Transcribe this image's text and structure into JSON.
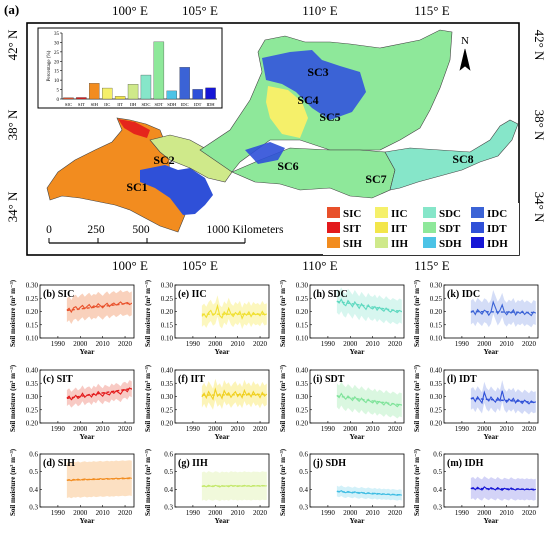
{
  "map": {
    "panel_label": "(a)",
    "lon_labels": [
      "100° E",
      "105° E",
      "110° E",
      "115° E"
    ],
    "lat_labels": [
      "42° N",
      "38° N",
      "34° N"
    ],
    "north_label": "N",
    "scale_labels": [
      "0",
      "250",
      "500",
      "1000 Kilometers"
    ],
    "region_labels": [
      "SC1",
      "SC2",
      "SC3",
      "SC4",
      "SC5",
      "SC6",
      "SC7",
      "SC8"
    ],
    "legend": [
      {
        "code": "SIC",
        "color": "#e8502a"
      },
      {
        "code": "SIT",
        "color": "#e31a1c"
      },
      {
        "code": "SIH",
        "color": "#f28c1f"
      },
      {
        "code": "IIC",
        "color": "#f5f06a"
      },
      {
        "code": "IIT",
        "color": "#f3e64a"
      },
      {
        "code": "IIH",
        "color": "#cfe98a"
      },
      {
        "code": "SDC",
        "color": "#86e6c9"
      },
      {
        "code": "SDT",
        "color": "#8ee89a"
      },
      {
        "code": "SDH",
        "color": "#4cc3e6"
      },
      {
        "code": "IDC",
        "color": "#3b63d6"
      },
      {
        "code": "IDT",
        "color": "#2f50d8"
      },
      {
        "code": "IDH",
        "color": "#1616d6"
      }
    ]
  },
  "chart_data": [
    {
      "type": "bar",
      "categories": [
        "SIC",
        "SIT",
        "SIH",
        "IIC",
        "IIT",
        "IIH",
        "SDC",
        "SDT",
        "SDH",
        "IDC",
        "IDT",
        "IDH"
      ],
      "values": [
        0.7,
        0.8,
        8.3,
        5.8,
        1.4,
        7.8,
        12.7,
        30.3,
        4.3,
        16.8,
        5.1,
        5.9
      ],
      "colors": [
        "#e8502a",
        "#e31a1c",
        "#f28c1f",
        "#f5f06a",
        "#f3e64a",
        "#cfe98a",
        "#86e6c9",
        "#8ee89a",
        "#4cc3e6",
        "#3b63d6",
        "#2f50d8",
        "#1616d6"
      ],
      "ylabel": "Percentage (%)",
      "ylim": [
        0,
        35
      ],
      "yticks": [
        0,
        5,
        10,
        15,
        20,
        25,
        30,
        35
      ]
    },
    {
      "type": "line",
      "panels": [
        {
          "label": "(b) SIC",
          "color": "#e8502a",
          "band": "#f7c2a6",
          "ylim": [
            0.1,
            0.3
          ],
          "yticks": [
            "0.10",
            "0.15",
            "0.20",
            "0.25",
            "0.30"
          ],
          "trend": [
            0.204,
            0.232
          ],
          "band_width": 0.045,
          "values": [
            0.205,
            0.212,
            0.198,
            0.214,
            0.218,
            0.207,
            0.216,
            0.223,
            0.211,
            0.219,
            0.226,
            0.214,
            0.221,
            0.218,
            0.229,
            0.222,
            0.214,
            0.224,
            0.231,
            0.219,
            0.227,
            0.232,
            0.224,
            0.229,
            0.236,
            0.228,
            0.231,
            0.234,
            0.226,
            0.231
          ]
        },
        {
          "label": "(e) IIC",
          "color": "#f0e030",
          "band": "#fbf4a8",
          "ylim": [
            0.1,
            0.3
          ],
          "yticks": [
            "0.10",
            "0.15",
            "0.20",
            "0.25",
            "0.30"
          ],
          "trend": [
            0.19,
            0.19
          ],
          "band_width": 0.04,
          "values": [
            0.182,
            0.19,
            0.178,
            0.196,
            0.204,
            0.186,
            0.193,
            0.221,
            0.184,
            0.176,
            0.198,
            0.188,
            0.212,
            0.19,
            0.181,
            0.196,
            0.188,
            0.2,
            0.174,
            0.193,
            0.186,
            0.199,
            0.181,
            0.196,
            0.188,
            0.192,
            0.184,
            0.2,
            0.187,
            0.191
          ]
        },
        {
          "label": "(h) SDC",
          "color": "#5fd9c0",
          "band": "#c9f3ea",
          "ylim": [
            0.1,
            0.3
          ],
          "yticks": [
            "0.10",
            "0.15",
            "0.20",
            "0.25",
            "0.30"
          ],
          "trend": [
            0.238,
            0.2
          ],
          "band_width": 0.045,
          "values": [
            0.24,
            0.232,
            0.246,
            0.228,
            0.222,
            0.241,
            0.23,
            0.218,
            0.236,
            0.224,
            0.212,
            0.229,
            0.218,
            0.208,
            0.225,
            0.214,
            0.21,
            0.219,
            0.205,
            0.216,
            0.208,
            0.201,
            0.213,
            0.204,
            0.198,
            0.206,
            0.201,
            0.196,
            0.204,
            0.199
          ]
        },
        {
          "label": "(k) IDC",
          "color": "#3b63d6",
          "band": "#c6d2f4",
          "ylim": [
            0.1,
            0.3
          ],
          "yticks": [
            "0.10",
            "0.15",
            "0.20",
            "0.25",
            "0.30"
          ],
          "trend": [
            0.2,
            0.196
          ],
          "band_width": 0.045,
          "values": [
            0.196,
            0.203,
            0.189,
            0.207,
            0.198,
            0.19,
            0.205,
            0.2,
            0.186,
            0.199,
            0.236,
            0.214,
            0.192,
            0.205,
            0.225,
            0.198,
            0.188,
            0.2,
            0.194,
            0.206,
            0.187,
            0.198,
            0.193,
            0.201,
            0.189,
            0.197,
            0.192,
            0.185,
            0.198,
            0.194
          ]
        },
        {
          "label": "(c) SIT",
          "color": "#e31a1c",
          "band": "#f6b8b0",
          "ylim": [
            0.2,
            0.4
          ],
          "yticks": [
            "0.20",
            "0.25",
            "0.30",
            "0.35",
            "0.40"
          ],
          "trend": [
            0.293,
            0.33
          ],
          "band_width": 0.03,
          "values": [
            0.294,
            0.301,
            0.288,
            0.296,
            0.304,
            0.293,
            0.299,
            0.312,
            0.297,
            0.305,
            0.308,
            0.298,
            0.311,
            0.304,
            0.318,
            0.309,
            0.301,
            0.314,
            0.31,
            0.306,
            0.319,
            0.312,
            0.321,
            0.316,
            0.309,
            0.322,
            0.326,
            0.318,
            0.332,
            0.327
          ]
        },
        {
          "label": "(f) IIT",
          "color": "#f0d020",
          "band": "#fbf0a0",
          "ylim": [
            0.2,
            0.4
          ],
          "yticks": [
            "0.20",
            "0.25",
            "0.30",
            "0.35",
            "0.40"
          ],
          "trend": [
            0.305,
            0.308
          ],
          "band_width": 0.04,
          "values": [
            0.298,
            0.312,
            0.295,
            0.318,
            0.304,
            0.29,
            0.327,
            0.301,
            0.31,
            0.293,
            0.322,
            0.306,
            0.314,
            0.297,
            0.309,
            0.318,
            0.3,
            0.311,
            0.296,
            0.323,
            0.305,
            0.313,
            0.299,
            0.318,
            0.304,
            0.31,
            0.296,
            0.315,
            0.302,
            0.309
          ]
        },
        {
          "label": "(i) SDT",
          "color": "#7fe39a",
          "band": "#cdf4d6",
          "ylim": [
            0.2,
            0.4
          ],
          "yticks": [
            "0.20",
            "0.25",
            "0.30",
            "0.35",
            "0.40"
          ],
          "trend": [
            0.302,
            0.268
          ],
          "band_width": 0.045,
          "values": [
            0.305,
            0.296,
            0.311,
            0.298,
            0.29,
            0.302,
            0.294,
            0.285,
            0.299,
            0.289,
            0.282,
            0.294,
            0.284,
            0.277,
            0.29,
            0.281,
            0.276,
            0.285,
            0.272,
            0.281,
            0.276,
            0.268,
            0.279,
            0.271,
            0.266,
            0.274,
            0.269,
            0.262,
            0.27,
            0.267
          ]
        },
        {
          "label": "(l) IDT",
          "color": "#2f50d8",
          "band": "#c3cdf4",
          "ylim": [
            0.2,
            0.4
          ],
          "yticks": [
            "0.20",
            "0.25",
            "0.30",
            "0.35",
            "0.40"
          ],
          "trend": [
            0.293,
            0.278
          ],
          "band_width": 0.04,
          "values": [
            0.29,
            0.296,
            0.281,
            0.299,
            0.287,
            0.276,
            0.316,
            0.292,
            0.283,
            0.298,
            0.287,
            0.279,
            0.295,
            0.284,
            0.322,
            0.289,
            0.278,
            0.291,
            0.283,
            0.293,
            0.276,
            0.288,
            0.281,
            0.274,
            0.286,
            0.279,
            0.272,
            0.283,
            0.277,
            0.28
          ]
        },
        {
          "label": "(d) SIH",
          "color": "#f28c1f",
          "band": "#fbd5ad",
          "ylim": [
            0.3,
            0.6
          ],
          "yticks": [
            "0.3",
            "0.4",
            "0.5",
            "0.6"
          ],
          "trend": [
            0.452,
            0.462
          ],
          "band_width": 0.1,
          "values": [
            0.451,
            0.455,
            0.449,
            0.456,
            0.453,
            0.458,
            0.452,
            0.456,
            0.459,
            0.454,
            0.457,
            0.455,
            0.46,
            0.456,
            0.458,
            0.461,
            0.457,
            0.459,
            0.462,
            0.458,
            0.461,
            0.459,
            0.463,
            0.46,
            0.462,
            0.464,
            0.461,
            0.463,
            0.465,
            0.462
          ]
        },
        {
          "label": "(g) IIH",
          "color": "#c3e86a",
          "band": "#ecf7cf",
          "ylim": [
            0.3,
            0.6
          ],
          "yticks": [
            "0.3",
            "0.4",
            "0.5",
            "0.6"
          ],
          "trend": [
            0.418,
            0.42
          ],
          "band_width": 0.08,
          "values": [
            0.416,
            0.421,
            0.414,
            0.423,
            0.418,
            0.415,
            0.422,
            0.419,
            0.413,
            0.421,
            0.417,
            0.42,
            0.415,
            0.423,
            0.418,
            0.421,
            0.416,
            0.42,
            0.417,
            0.422,
            0.418,
            0.42,
            0.416,
            0.421,
            0.419,
            0.42,
            0.417,
            0.422,
            0.419,
            0.42
          ]
        },
        {
          "label": "(j) SDH",
          "color": "#3fbde3",
          "band": "#c4ecf7",
          "ylim": [
            0.3,
            0.6
          ],
          "yticks": [
            "0.3",
            "0.4",
            "0.5",
            "0.6"
          ],
          "trend": [
            0.388,
            0.368
          ],
          "band_width": 0.03,
          "values": [
            0.39,
            0.385,
            0.392,
            0.384,
            0.381,
            0.388,
            0.383,
            0.379,
            0.386,
            0.38,
            0.377,
            0.383,
            0.378,
            0.375,
            0.381,
            0.376,
            0.373,
            0.378,
            0.372,
            0.376,
            0.371,
            0.374,
            0.37,
            0.373,
            0.368,
            0.372,
            0.369,
            0.366,
            0.37,
            0.367
          ]
        },
        {
          "label": "(m) IDH",
          "color": "#1616d6",
          "band": "#c4c4f4",
          "ylim": [
            0.3,
            0.6
          ],
          "yticks": [
            "0.3",
            "0.4",
            "0.5",
            "0.6"
          ],
          "trend": [
            0.405,
            0.4
          ],
          "band_width": 0.06,
          "values": [
            0.404,
            0.41,
            0.398,
            0.412,
            0.402,
            0.396,
            0.414,
            0.405,
            0.398,
            0.409,
            0.403,
            0.397,
            0.41,
            0.4,
            0.395,
            0.406,
            0.401,
            0.397,
            0.408,
            0.4,
            0.396,
            0.404,
            0.399,
            0.402,
            0.397,
            0.403,
            0.398,
            0.401,
            0.396,
            0.4
          ]
        }
      ],
      "x": [
        1994,
        1995,
        1996,
        1997,
        1998,
        1999,
        2000,
        2001,
        2002,
        2003,
        2004,
        2005,
        2006,
        2007,
        2008,
        2009,
        2010,
        2011,
        2012,
        2013,
        2014,
        2015,
        2016,
        2017,
        2018,
        2019,
        2020,
        2021,
        2022,
        2023
      ],
      "xlim": [
        1982,
        2024
      ],
      "xticks": [
        "1990",
        "2000",
        "2010",
        "2020"
      ],
      "xlabel": "Year",
      "ylabel": "Soil moisture (m³ m⁻³)"
    }
  ]
}
